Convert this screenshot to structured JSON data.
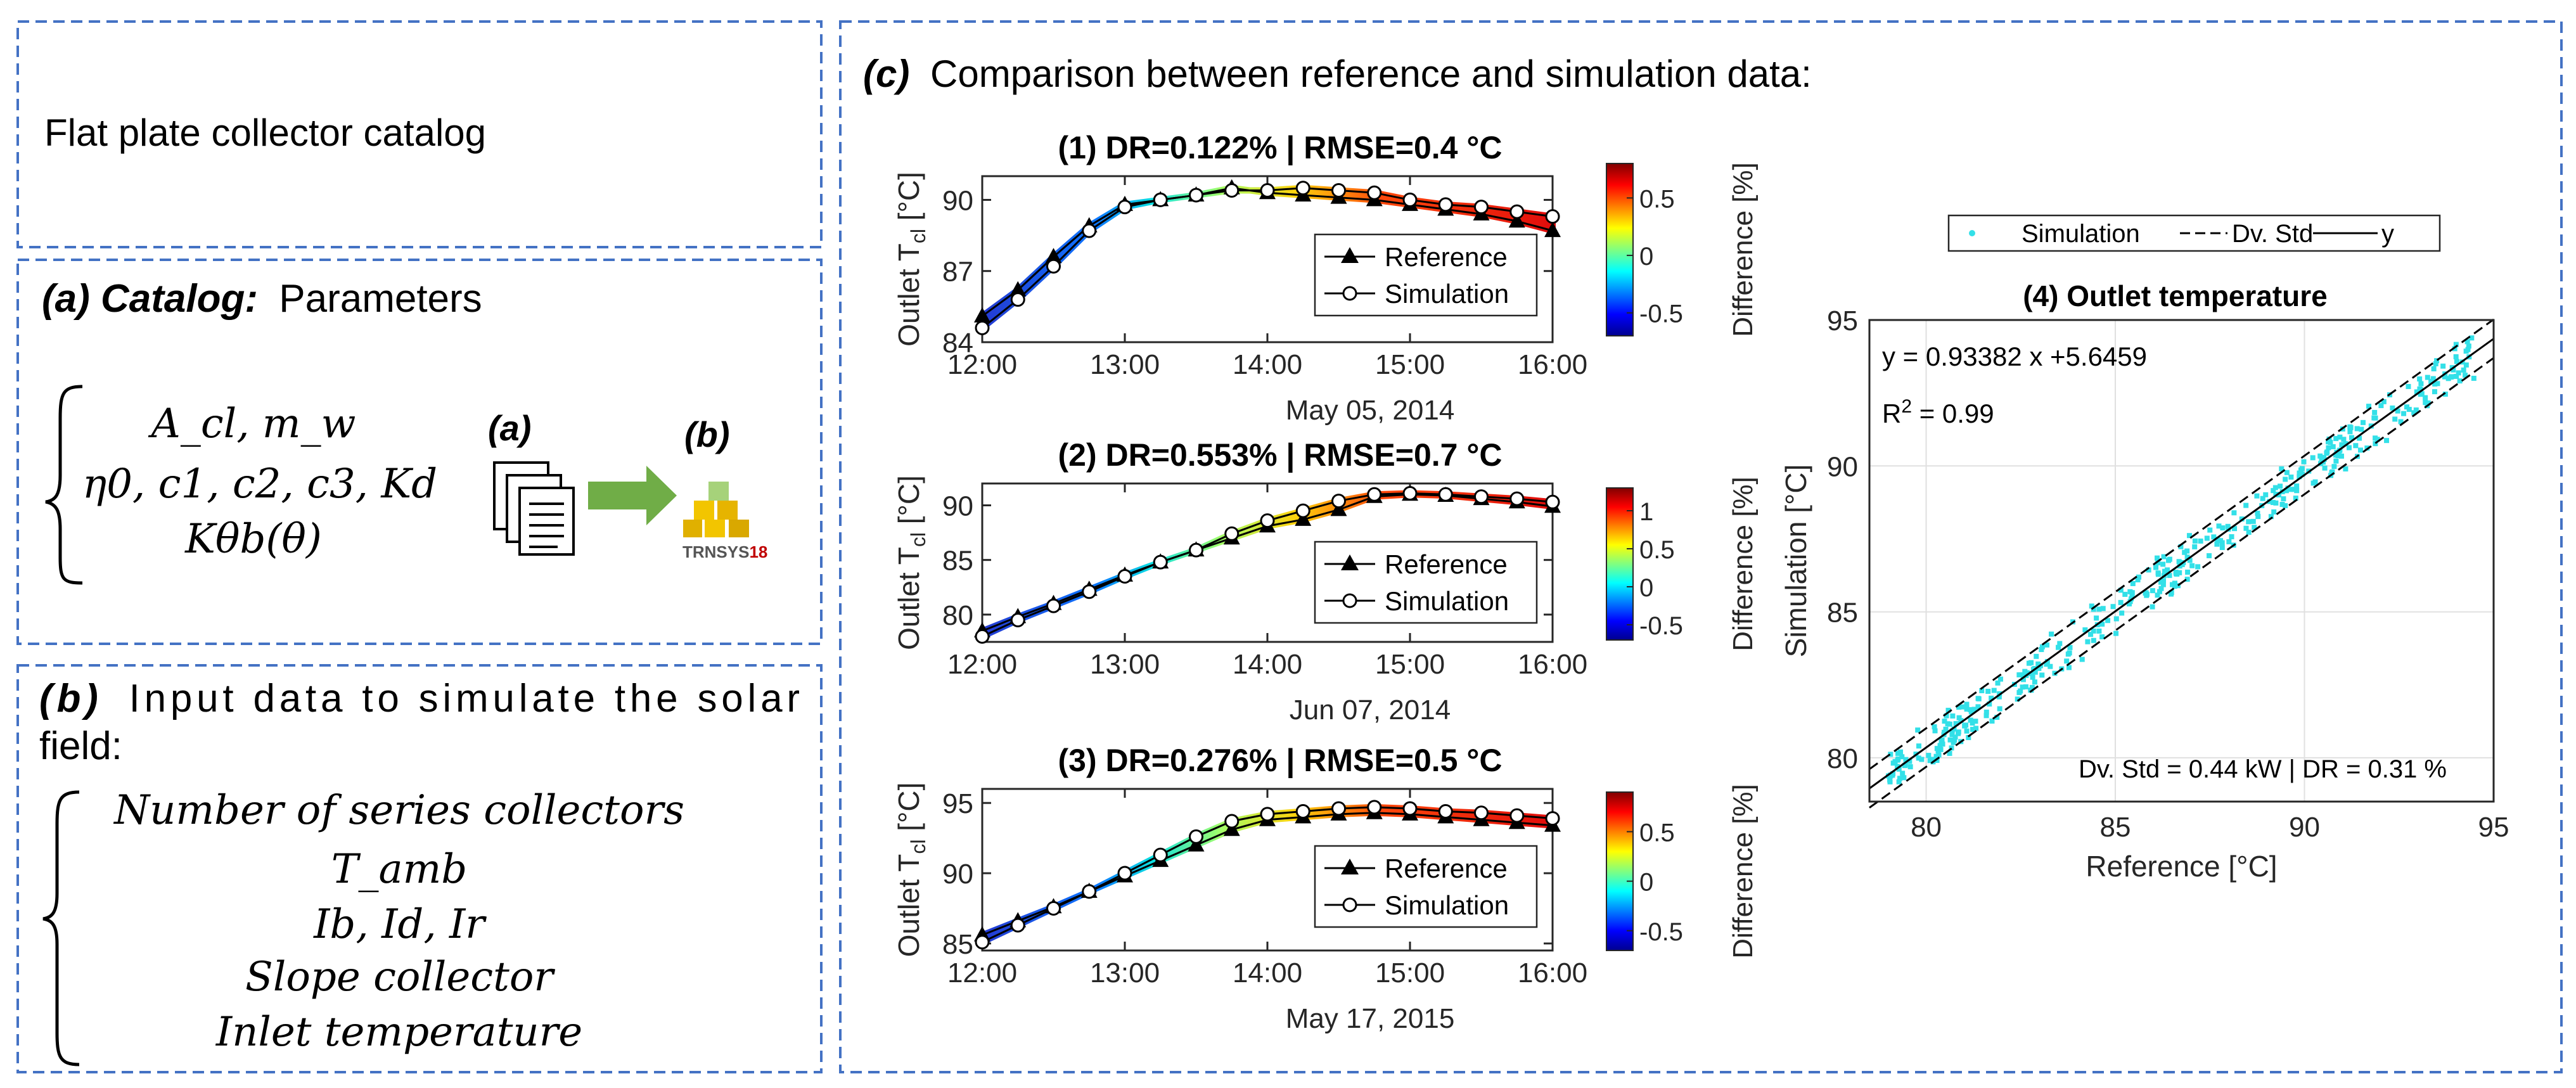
{
  "panels": {
    "catalog_title": "Flat plate collector catalog",
    "a": {
      "label": "(a) Catalog:",
      "text": "Parameters",
      "eq_line1": "A_cl, m_w",
      "eq_line2": "η0, c1, c2, c3, Kd",
      "eq_line3": "Kθb(θ)",
      "icon_label_a": "(a)",
      "icon_label_b": "(b)",
      "trnsys_text": "TRNSYS",
      "trnsys_ver": "18"
    },
    "b": {
      "label": "(b)",
      "text_line1": "Input data to simulate the solar",
      "text_line2": "field:",
      "items": [
        "Number of series collectors",
        "T_amb",
        "Ib, Id, Ir",
        "Slope collector",
        "Inlet temperature"
      ]
    },
    "c": {
      "label": "(c)",
      "text": "Comparison between reference and simulation data:"
    }
  },
  "colors": {
    "border": "#4472c4",
    "reference": "#000000",
    "simulation_marker": "#ffffff",
    "scatter": "#33e0e8"
  },
  "chart_data": [
    {
      "type": "line",
      "title": "(1) DR=0.122% | RMSE=0.4 °C",
      "ylabel": "Outlet T_cl [°C]",
      "xlabel": "May 05, 2014",
      "x_ticks": [
        "12:00",
        "13:00",
        "14:00",
        "15:00",
        "16:00"
      ],
      "y_ticks": [
        84,
        87,
        90
      ],
      "xlim": [
        12,
        16
      ],
      "ylim": [
        84,
        91
      ],
      "colorbar_label": "Difference [%]",
      "colorbar_ticks": [
        "0.5",
        "0",
        "-0.5"
      ],
      "colorbar_range": [
        -0.7,
        0.8
      ],
      "legend": [
        "Reference",
        "Simulation"
      ],
      "series": [
        {
          "name": "Reference",
          "x": [
            12,
            12.25,
            12.5,
            12.75,
            13,
            13.25,
            13.5,
            13.75,
            14,
            14.25,
            14.5,
            14.75,
            15,
            15.25,
            15.5,
            15.75,
            16
          ],
          "values": [
            85.1,
            86.2,
            87.6,
            88.9,
            89.8,
            90.0,
            90.2,
            90.5,
            90.3,
            90.2,
            90.1,
            90.0,
            89.8,
            89.6,
            89.4,
            89.1,
            88.7
          ]
        },
        {
          "name": "Simulation",
          "x": [
            12,
            12.25,
            12.5,
            12.75,
            13,
            13.25,
            13.5,
            13.75,
            14,
            14.25,
            14.5,
            14.75,
            15,
            15.25,
            15.5,
            15.75,
            16
          ],
          "values": [
            84.6,
            85.8,
            87.2,
            88.7,
            89.7,
            90.0,
            90.2,
            90.4,
            90.4,
            90.5,
            90.4,
            90.3,
            90.0,
            89.8,
            89.7,
            89.5,
            89.3
          ]
        }
      ]
    },
    {
      "type": "line",
      "title": "(2) DR=0.553% | RMSE=0.7 °C",
      "ylabel": "Outlet T_cl [°C]",
      "xlabel": "Jun 07, 2014",
      "x_ticks": [
        "12:00",
        "13:00",
        "14:00",
        "15:00",
        "16:00"
      ],
      "y_ticks": [
        80,
        85,
        90
      ],
      "xlim": [
        12,
        16
      ],
      "ylim": [
        77.5,
        92
      ],
      "colorbar_label": "Difference [%]",
      "colorbar_ticks": [
        "1",
        "0.5",
        "0",
        "-0.5"
      ],
      "colorbar_range": [
        -0.7,
        1.3
      ],
      "legend": [
        "Reference",
        "Simulation"
      ],
      "series": [
        {
          "name": "Reference",
          "x": [
            12,
            12.25,
            12.5,
            12.75,
            13,
            13.25,
            13.5,
            13.75,
            14,
            14.25,
            14.5,
            14.75,
            15,
            15.25,
            15.5,
            15.75,
            16
          ],
          "values": [
            78.5,
            79.8,
            81.0,
            82.3,
            83.6,
            84.8,
            85.9,
            87.0,
            88.1,
            88.7,
            89.6,
            90.8,
            91.0,
            90.9,
            90.6,
            90.3,
            89.9
          ]
        },
        {
          "name": "Simulation",
          "x": [
            12,
            12.25,
            12.5,
            12.75,
            13,
            13.25,
            13.5,
            13.75,
            14,
            14.25,
            14.5,
            14.75,
            15,
            15.25,
            15.5,
            15.75,
            16
          ],
          "values": [
            78.0,
            79.5,
            80.8,
            82.1,
            83.5,
            84.8,
            85.9,
            87.4,
            88.6,
            89.5,
            90.4,
            91.0,
            91.1,
            91.0,
            90.8,
            90.6,
            90.3
          ]
        }
      ]
    },
    {
      "type": "line",
      "title": "(3) DR=0.276% | RMSE=0.5 °C",
      "ylabel": "Outlet T_cl [°C]",
      "xlabel": "May 17, 2015",
      "x_ticks": [
        "12:00",
        "13:00",
        "14:00",
        "15:00",
        "16:00"
      ],
      "y_ticks": [
        85,
        90,
        95
      ],
      "xlim": [
        12,
        16
      ],
      "ylim": [
        84.5,
        96
      ],
      "colorbar_label": "Difference [%]",
      "colorbar_ticks": [
        "0.5",
        "0",
        "-0.5"
      ],
      "colorbar_range": [
        -0.7,
        0.9
      ],
      "legend": [
        "Reference",
        "Simulation"
      ],
      "series": [
        {
          "name": "Reference",
          "x": [
            12,
            12.25,
            12.5,
            12.75,
            13,
            13.25,
            13.5,
            13.75,
            14,
            14.25,
            14.5,
            14.75,
            15,
            15.25,
            15.5,
            15.75,
            16
          ],
          "values": [
            85.6,
            86.6,
            87.6,
            88.7,
            89.8,
            90.9,
            92.0,
            93.1,
            93.8,
            94.0,
            94.2,
            94.3,
            94.2,
            94.0,
            93.8,
            93.6,
            93.4
          ]
        },
        {
          "name": "Simulation",
          "x": [
            12,
            12.25,
            12.5,
            12.75,
            13,
            13.25,
            13.5,
            13.75,
            14,
            14.25,
            14.5,
            14.75,
            15,
            15.25,
            15.5,
            15.75,
            16
          ],
          "values": [
            85.1,
            86.3,
            87.5,
            88.7,
            90.0,
            91.3,
            92.6,
            93.7,
            94.2,
            94.4,
            94.6,
            94.7,
            94.6,
            94.4,
            94.3,
            94.1,
            93.9
          ]
        }
      ]
    },
    {
      "type": "scatter",
      "title": "(4) Outlet temperature",
      "xlabel": "Reference [°C]",
      "ylabel": "Simulation [°C]",
      "xlim": [
        78.5,
        95
      ],
      "ylim": [
        78.5,
        95
      ],
      "x_ticks": [
        80,
        85,
        90,
        95
      ],
      "y_ticks": [
        80,
        85,
        90,
        95
      ],
      "grid": true,
      "legend": [
        "Simulation",
        "Dv. Std",
        "y"
      ],
      "legend_position": "top",
      "annotation_eq": "y = 0.93382 x +5.6459",
      "annotation_r2_base": "R",
      "annotation_r2_sup": "2",
      "annotation_r2_rest": " = 0.99",
      "annotation_stats": "Dv. Std = 0.44 kW | DR = 0.31 %",
      "fit": {
        "slope": 0.93382,
        "intercept": 5.6459
      },
      "dv_std": 0.44
    }
  ]
}
